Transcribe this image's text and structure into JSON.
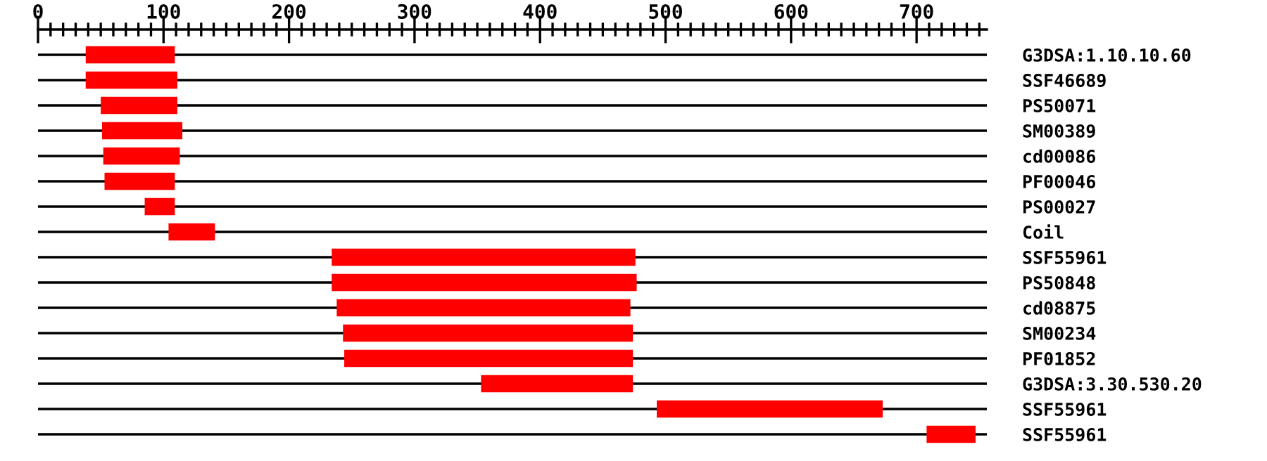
{
  "chart_data": {
    "type": "bar",
    "orientation": "horizontal",
    "categories": [
      "G3DSA:1.10.10.60",
      "SSF46689",
      "PS50071",
      "SM00389",
      "cd00086",
      "PF00046",
      "PS00027",
      "Coil",
      "SSF55961",
      "PS50848",
      "cd08875",
      "SM00234",
      "PF01852",
      "G3DSA:3.30.530.20",
      "SSF55961",
      "SSF55961"
    ],
    "base": [
      38,
      38,
      50,
      51,
      52,
      53,
      85,
      104,
      234,
      234,
      238,
      243,
      244,
      353,
      493,
      708
    ],
    "values": [
      71,
      73,
      61,
      64,
      61,
      56,
      24,
      37,
      242,
      243,
      234,
      231,
      230,
      121,
      180,
      39
    ],
    "color": "#ff0000",
    "xlim": [
      0,
      756
    ],
    "xticks": [
      0,
      {
        "value": 10,
        "label": null
      },
      {
        "value": 20,
        "label": null
      },
      {
        "value": 30,
        "label": null
      },
      {
        "value": 40,
        "label": null
      },
      {
        "value": 50,
        "label": null
      },
      {
        "value": 60,
        "label": null
      },
      {
        "value": 70,
        "label": null
      },
      {
        "value": 80,
        "label": null
      },
      {
        "value": 90,
        "label": null
      },
      100,
      {
        "value": 110,
        "label": null
      },
      {
        "value": 120,
        "label": null
      },
      {
        "value": 130,
        "label": null
      },
      {
        "value": 140,
        "label": null
      },
      {
        "value": 150,
        "label": null
      },
      {
        "value": 160,
        "label": null
      },
      {
        "value": 170,
        "label": null
      },
      {
        "value": 180,
        "label": null
      },
      {
        "value": 190,
        "label": null
      },
      200,
      {
        "value": 210,
        "label": null
      },
      {
        "value": 220,
        "label": null
      },
      {
        "value": 230,
        "label": null
      },
      {
        "value": 240,
        "label": null
      },
      {
        "value": 250,
        "label": null
      },
      {
        "value": 260,
        "label": null
      },
      {
        "value": 270,
        "label": null
      },
      {
        "value": 280,
        "label": null
      },
      {
        "value": 290,
        "label": null
      },
      300,
      {
        "value": 310,
        "label": null
      },
      {
        "value": 320,
        "label": null
      },
      {
        "value": 330,
        "label": null
      },
      {
        "value": 340,
        "label": null
      },
      {
        "value": 350,
        "label": null
      },
      {
        "value": 360,
        "label": null
      },
      {
        "value": 370,
        "label": null
      },
      {
        "value": 380,
        "label": null
      },
      {
        "value": 390,
        "label": null
      },
      400,
      {
        "value": 410,
        "label": null
      },
      {
        "value": 420,
        "label": null
      },
      {
        "value": 430,
        "label": null
      },
      {
        "value": 440,
        "label": null
      },
      {
        "value": 450,
        "label": null
      },
      {
        "value": 460,
        "label": null
      },
      {
        "value": 470,
        "label": null
      },
      {
        "value": 480,
        "label": null
      },
      {
        "value": 490,
        "label": null
      },
      500,
      {
        "value": 510,
        "label": null
      },
      {
        "value": 520,
        "label": null
      },
      {
        "value": 530,
        "label": null
      },
      {
        "value": 540,
        "label": null
      },
      {
        "value": 550,
        "label": null
      },
      {
        "value": 560,
        "label": null
      },
      {
        "value": 570,
        "label": null
      },
      {
        "value": 580,
        "label": null
      },
      {
        "value": 590,
        "label": null
      },
      600,
      {
        "value": 610,
        "label": null
      },
      {
        "value": 620,
        "label": null
      },
      {
        "value": 630,
        "label": null
      },
      {
        "value": 640,
        "label": null
      },
      {
        "value": 650,
        "label": null
      },
      {
        "value": 660,
        "label": null
      },
      {
        "value": 670,
        "label": null
      },
      {
        "value": 680,
        "label": null
      },
      {
        "value": 690,
        "label": null
      },
      700,
      {
        "value": 710,
        "label": null
      },
      {
        "value": 720,
        "label": null
      },
      {
        "value": 730,
        "label": null
      },
      {
        "value": 740,
        "label": null
      },
      {
        "value": 750,
        "label": null
      }
    ],
    "grid": "y"
  }
}
